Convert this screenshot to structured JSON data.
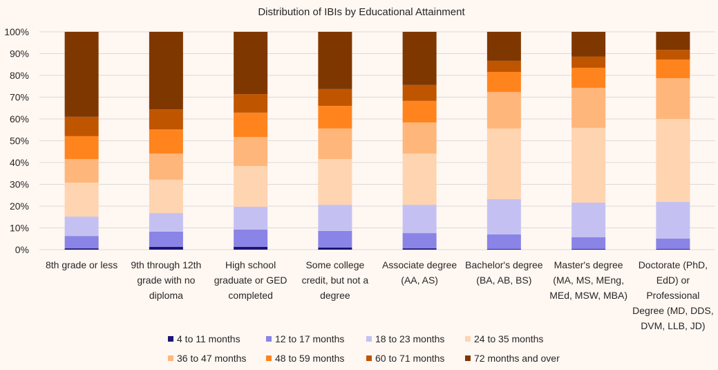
{
  "chart_data": {
    "type": "bar",
    "stacked": "percent",
    "title": "Distribution of IBIs by Educational Attainment",
    "xlabel": "",
    "ylabel": "",
    "ylim": [
      0,
      100
    ],
    "yticks": [
      "0%",
      "10%",
      "20%",
      "30%",
      "40%",
      "50%",
      "60%",
      "70%",
      "80%",
      "90%",
      "100%"
    ],
    "grid": true,
    "legend_position": "bottom",
    "categories": [
      [
        "8th grade or less"
      ],
      [
        "9th through 12th",
        "grade with no",
        "diploma"
      ],
      [
        "High school",
        "graduate or GED",
        "completed"
      ],
      [
        "Some college",
        "credit, but not a",
        "degree"
      ],
      [
        "Associate degree",
        "(AA, AS)"
      ],
      [
        "Bachelor's degree",
        "(BA, AB, BS)"
      ],
      [
        "Master's degree",
        "(MA, MS, MEng,",
        "MEd, MSW, MBA)"
      ],
      [
        "Doctorate (PhD,",
        "EdD) or",
        "Professional",
        "Degree (MD, DDS,",
        "DVM, LLB, JD)"
      ]
    ],
    "series": [
      {
        "name": "4 to 11 months",
        "color": "#1c1676",
        "values": [
          0.6,
          1.3,
          1.3,
          1.0,
          0.6,
          0.3,
          0.3,
          0.3
        ]
      },
      {
        "name": "12 to 17 months",
        "color": "#8a84e6",
        "values": [
          5.7,
          7.0,
          7.9,
          7.6,
          7.0,
          6.7,
          5.4,
          4.8
        ]
      },
      {
        "name": "18 to 23 months",
        "color": "#c4c1f2",
        "values": [
          8.9,
          8.5,
          10.5,
          12.0,
          13.0,
          16.2,
          15.9,
          16.8
        ]
      },
      {
        "name": "24 to 35 months",
        "color": "#ffd4b0",
        "values": [
          15.6,
          15.3,
          18.7,
          21.0,
          23.5,
          32.4,
          34.3,
          38.1
        ]
      },
      {
        "name": "36 to 47 months",
        "color": "#ffb67b",
        "values": [
          10.8,
          12.0,
          13.3,
          14.0,
          14.3,
          16.8,
          18.4,
          18.7
        ]
      },
      {
        "name": "48 to 59 months",
        "color": "#ff841e",
        "values": [
          10.5,
          11.1,
          11.2,
          10.4,
          9.9,
          9.2,
          9.2,
          8.6
        ]
      },
      {
        "name": "60 to 71 months",
        "color": "#c05500",
        "values": [
          8.9,
          9.2,
          8.5,
          7.7,
          7.3,
          5.1,
          5.1,
          4.4
        ]
      },
      {
        "name": "72 months and over",
        "color": "#7f3700",
        "values": [
          39.0,
          35.6,
          28.6,
          26.3,
          24.4,
          13.3,
          11.4,
          8.3
        ]
      }
    ]
  }
}
